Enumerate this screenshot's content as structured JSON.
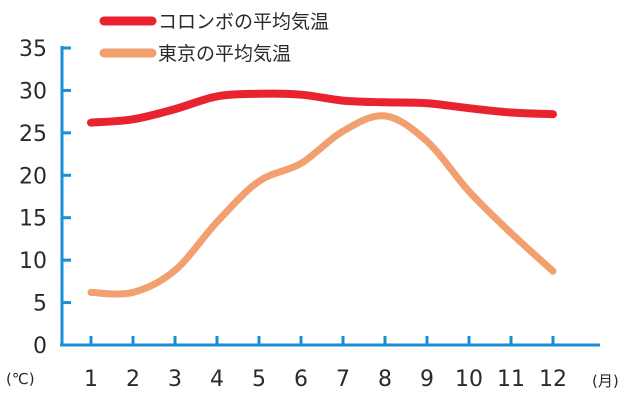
{
  "chart_data": {
    "type": "line",
    "title": "",
    "xlabel": "",
    "ylabel": "",
    "y_unit": "(℃)",
    "x_unit": "(月)",
    "categories": [
      "1",
      "2",
      "3",
      "4",
      "5",
      "6",
      "7",
      "8",
      "9",
      "10",
      "11",
      "12"
    ],
    "yticks": [
      0,
      5,
      10,
      15,
      20,
      25,
      30,
      35
    ],
    "ylim": [
      0,
      35
    ],
    "grid": false,
    "legend_position": "top-left",
    "series": [
      {
        "name": "コロンボの平均気温",
        "color": "#e8232f",
        "values": [
          26.2,
          26.6,
          27.8,
          29.3,
          29.6,
          29.5,
          28.8,
          28.6,
          28.5,
          27.9,
          27.4,
          27.2
        ]
      },
      {
        "name": "東京の平均気温",
        "color": "#f2a06f",
        "values": [
          6.2,
          6.2,
          8.8,
          14.5,
          19.3,
          21.4,
          25.2,
          27.0,
          24.0,
          18.1,
          13.2,
          8.7
        ]
      }
    ],
    "axis_color": "#1a8fd6"
  }
}
